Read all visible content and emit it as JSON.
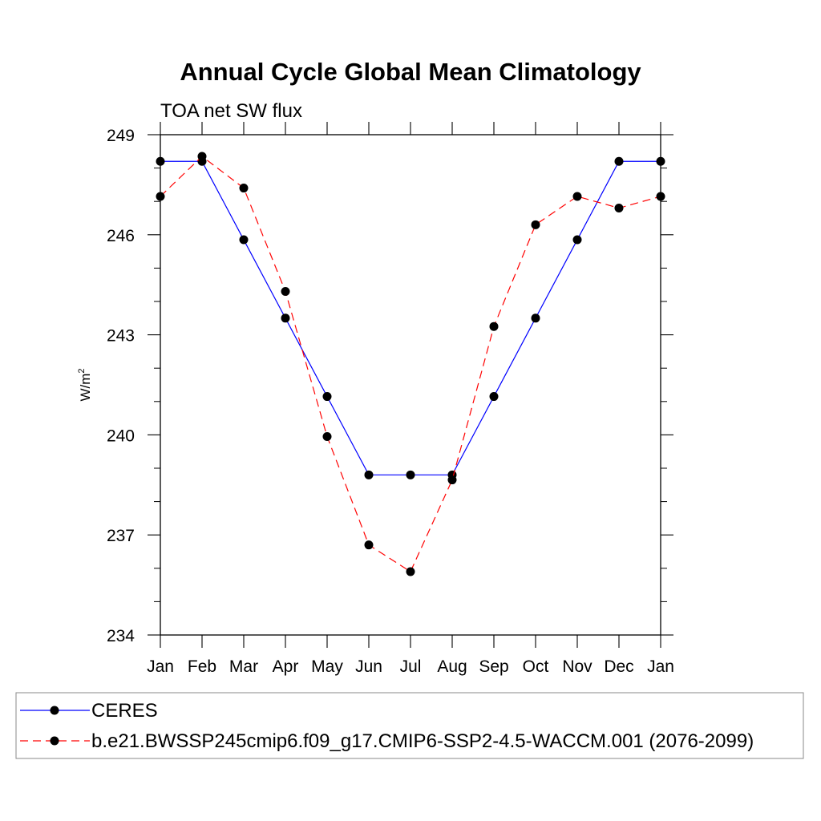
{
  "chart_data": {
    "type": "line",
    "title": "Annual Cycle Global Mean Climatology",
    "subtitle": "TOA net SW flux",
    "ylabel": "W/m",
    "ylabel_sup": "2",
    "xlabel": "",
    "ylim": [
      234,
      249
    ],
    "yticks": [
      234,
      237,
      240,
      243,
      246,
      249
    ],
    "categories": [
      "Jan",
      "Feb",
      "Mar",
      "Apr",
      "May",
      "Jun",
      "Jul",
      "Aug",
      "Sep",
      "Oct",
      "Nov",
      "Dec",
      "Jan"
    ],
    "grid": false,
    "legend_position": "bottom",
    "series": [
      {
        "name": "CERES",
        "color": "#0000ff",
        "dash": "solid",
        "marker": "circle",
        "values": [
          248.2,
          248.2,
          245.85,
          243.5,
          241.15,
          238.8,
          238.8,
          238.8,
          241.15,
          243.5,
          245.85,
          248.2,
          248.2
        ]
      },
      {
        "name": "b.e21.BWSSP245cmip6.f09_g17.CMIP6-SSP2-4.5-WACCM.001 (2076-2099)",
        "color": "#ff0000",
        "dash": "dashed",
        "marker": "circle",
        "values": [
          247.15,
          248.35,
          247.4,
          244.3,
          239.95,
          236.7,
          235.9,
          238.65,
          243.25,
          246.3,
          247.15,
          246.8,
          247.15
        ]
      }
    ]
  }
}
